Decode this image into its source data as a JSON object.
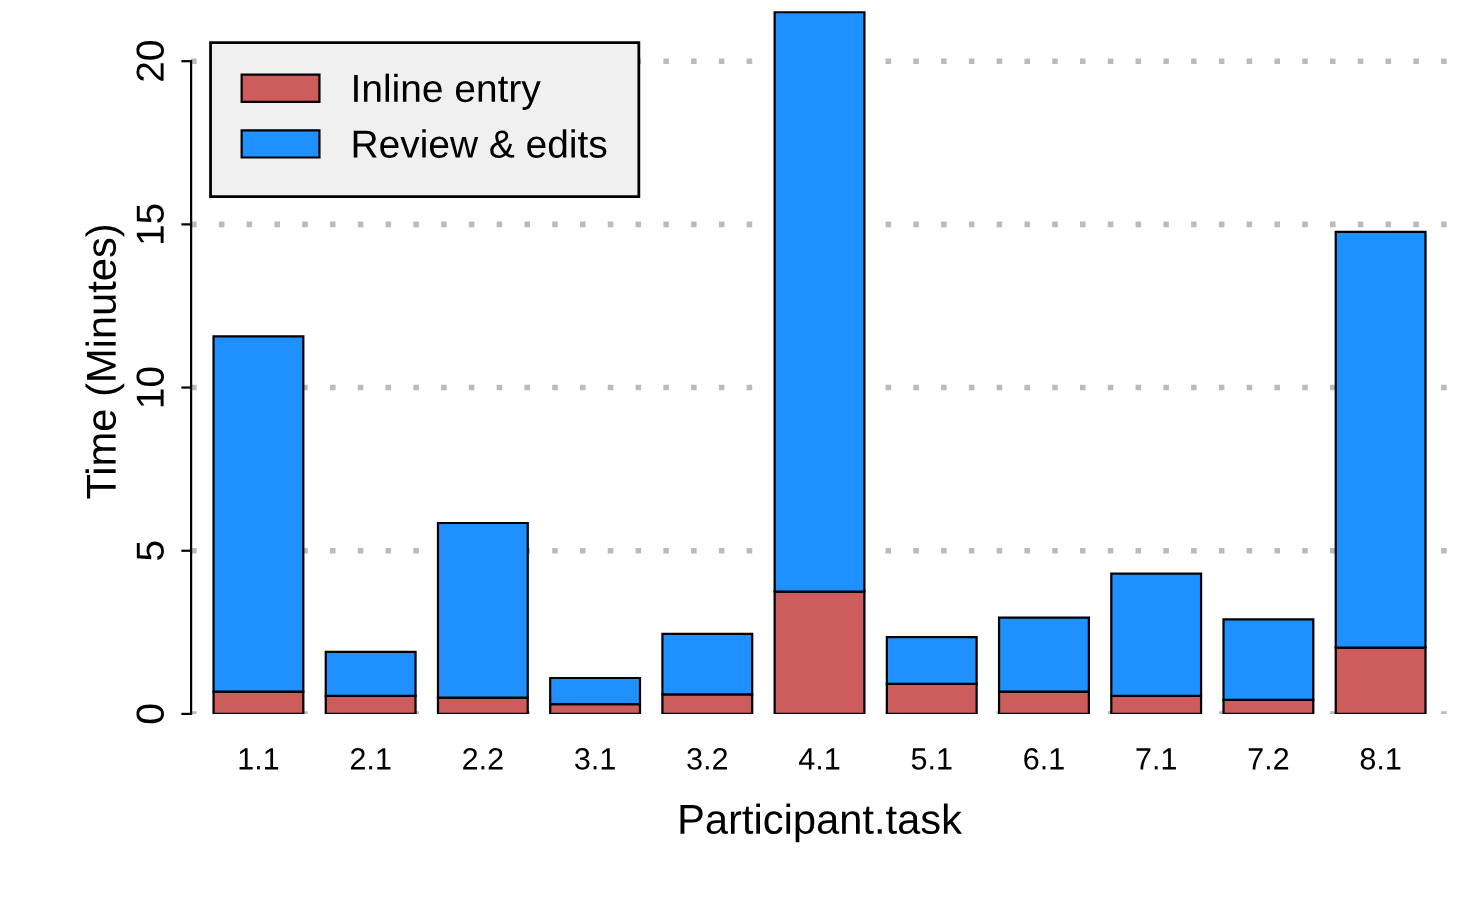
{
  "chart_data": {
    "type": "bar",
    "stacked": true,
    "xlabel": "Participant.task",
    "ylabel": "Time (Minutes)",
    "categories": [
      "1.1",
      "2.1",
      "2.2",
      "3.1",
      "3.2",
      "4.1",
      "5.1",
      "6.1",
      "7.1",
      "7.2",
      "8.1"
    ],
    "series": [
      {
        "name": "Inline entry",
        "color": "#cd5c5c",
        "values": [
          0.68,
          0.55,
          0.5,
          0.3,
          0.6,
          3.75,
          0.92,
          0.68,
          0.55,
          0.43,
          2.03
        ]
      },
      {
        "name": "Review & edits",
        "color": "#1e90ff",
        "values": [
          10.89,
          1.35,
          5.35,
          0.8,
          1.85,
          17.75,
          1.43,
          2.27,
          3.75,
          2.47,
          12.74
        ]
      }
    ],
    "ylim": [
      0,
      21.6
    ],
    "yticks": [
      0,
      5,
      10,
      15,
      20
    ],
    "grid": "y",
    "legend": "top left"
  }
}
